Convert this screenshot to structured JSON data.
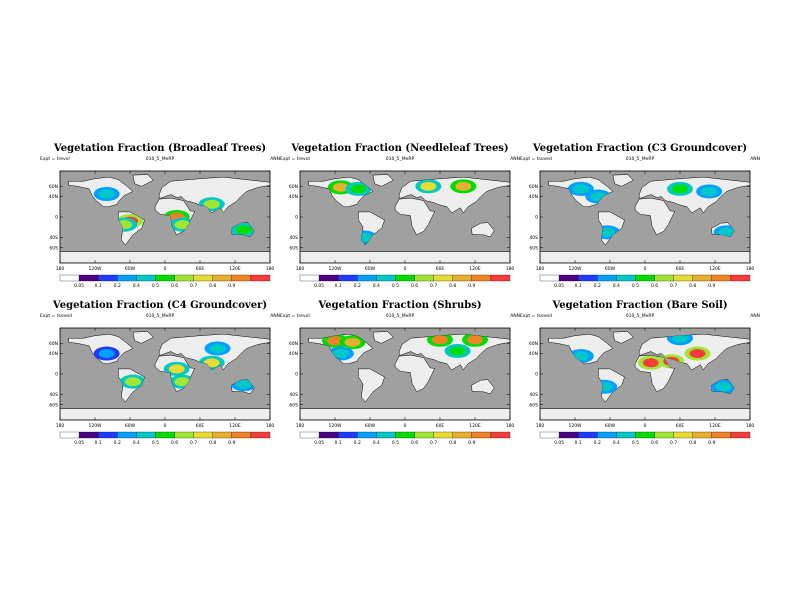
{
  "shared": {
    "case_name": "010_5_MeRP",
    "season": "ANN",
    "lat_labels": [
      "60N",
      "40N",
      "0",
      "40S",
      "60S"
    ],
    "lon_labels": [
      "180",
      "120W",
      "60W",
      "0",
      "60E",
      "120E",
      "180"
    ],
    "colorbar_labels": [
      "0.05",
      "0.1",
      "0.2",
      "0.4",
      "0.5",
      "0.6",
      "0.7",
      "0.8",
      "0.9"
    ],
    "colorbar_colors": [
      "#ffffff",
      "#4b0082",
      "#1e3cff",
      "#00a0ff",
      "#00c8c8",
      "#00dc00",
      "#a0e632",
      "#e6dc32",
      "#e6af2d",
      "#f08228",
      "#fa3c3c"
    ],
    "ocean_color": "#a0a0a0",
    "land_color": "#eeeeee"
  },
  "chart_data": [
    {
      "type": "heatmap",
      "title": "Vegetation Fraction (Broadleaf Trees)",
      "expt": "Expt = trevol",
      "blobs": [
        {
          "lon": -60,
          "lat": -8,
          "value": 0.9
        },
        {
          "lon": -70,
          "lat": -15,
          "value": 0.5
        },
        {
          "lon": 20,
          "lat": 0,
          "value": 0.8
        },
        {
          "lon": 30,
          "lat": -15,
          "value": 0.5
        },
        {
          "lon": 110,
          "lat": 0,
          "value": 0.85
        },
        {
          "lon": 135,
          "lat": -25,
          "value": 0.4
        },
        {
          "lon": -100,
          "lat": 45,
          "value": 0.2
        },
        {
          "lon": 80,
          "lat": 25,
          "value": 0.5
        }
      ]
    },
    {
      "type": "heatmap",
      "title": "Vegetation Fraction (Needleleaf Trees)",
      "expt": "Expt = trevol",
      "blobs": [
        {
          "lon": -110,
          "lat": 58,
          "value": 0.7
        },
        {
          "lon": -80,
          "lat": 55,
          "value": 0.4
        },
        {
          "lon": 40,
          "lat": 60,
          "value": 0.6
        },
        {
          "lon": 100,
          "lat": 60,
          "value": 0.7
        },
        {
          "lon": -70,
          "lat": -40,
          "value": 0.2
        }
      ]
    },
    {
      "type": "heatmap",
      "title": "Vegetation Fraction (C3 Groundcover)",
      "expt": "Expt = tsoved",
      "blobs": [
        {
          "lon": -110,
          "lat": 55,
          "value": 0.2
        },
        {
          "lon": -80,
          "lat": 40,
          "value": 0.2
        },
        {
          "lon": 60,
          "lat": 55,
          "value": 0.4
        },
        {
          "lon": 110,
          "lat": 50,
          "value": 0.2
        },
        {
          "lon": -65,
          "lat": -30,
          "value": 0.2
        },
        {
          "lon": 140,
          "lat": -30,
          "value": 0.2
        }
      ]
    },
    {
      "type": "heatmap",
      "title": "Vegetation Fraction (C4 Groundcover)",
      "expt": "Expt = tsoved",
      "blobs": [
        {
          "lon": -100,
          "lat": 40,
          "value": 0.1
        },
        {
          "lon": -55,
          "lat": -15,
          "value": 0.5
        },
        {
          "lon": 20,
          "lat": 10,
          "value": 0.6
        },
        {
          "lon": 30,
          "lat": -15,
          "value": 0.5
        },
        {
          "lon": 80,
          "lat": 22,
          "value": 0.6
        },
        {
          "lon": 135,
          "lat": -20,
          "value": 0.2
        },
        {
          "lon": 90,
          "lat": 50,
          "value": 0.2
        }
      ]
    },
    {
      "type": "heatmap",
      "title": "Vegetation Fraction (Shrubs)",
      "expt": "Expt = trevol",
      "blobs": [
        {
          "lon": -120,
          "lat": 65,
          "value": 0.8
        },
        {
          "lon": -90,
          "lat": 62,
          "value": 0.7
        },
        {
          "lon": 60,
          "lat": 67,
          "value": 0.8
        },
        {
          "lon": 120,
          "lat": 67,
          "value": 0.8
        },
        {
          "lon": 90,
          "lat": 45,
          "value": 0.4
        },
        {
          "lon": -110,
          "lat": 40,
          "value": 0.2
        }
      ]
    },
    {
      "type": "heatmap",
      "title": "Vegetation Fraction (Bare Soil)",
      "expt": "Expt = tsoved",
      "blobs": [
        {
          "lon": 10,
          "lat": 22,
          "value": 0.95
        },
        {
          "lon": 45,
          "lat": 25,
          "value": 0.95
        },
        {
          "lon": 90,
          "lat": 40,
          "value": 0.9
        },
        {
          "lon": -110,
          "lat": 35,
          "value": 0.2
        },
        {
          "lon": 135,
          "lat": -25,
          "value": 0.3
        },
        {
          "lon": -70,
          "lat": -25,
          "value": 0.2
        },
        {
          "lon": 60,
          "lat": 70,
          "value": 0.3
        }
      ]
    }
  ]
}
